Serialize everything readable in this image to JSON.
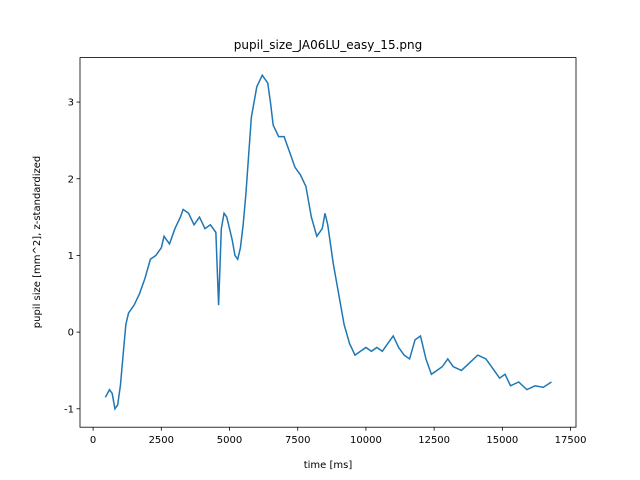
{
  "chart_data": {
    "type": "line",
    "title": "pupil_size_JA06LU_easy_15.png",
    "x_label": "time [ms]",
    "y_label": "pupil size [mm^2], z-standardized",
    "x": [
      450,
      600,
      700,
      800,
      900,
      1000,
      1100,
      1200,
      1300,
      1500,
      1700,
      1900,
      2100,
      2300,
      2500,
      2600,
      2800,
      3000,
      3200,
      3300,
      3500,
      3700,
      3900,
      4100,
      4300,
      4500,
      4600,
      4700,
      4800,
      4900,
      5100,
      5200,
      5300,
      5400,
      5500,
      5600,
      5700,
      5800,
      6000,
      6200,
      6400,
      6500,
      6600,
      6800,
      7000,
      7200,
      7400,
      7600,
      7800,
      8000,
      8200,
      8400,
      8500,
      8600,
      8800,
      9000,
      9200,
      9400,
      9600,
      9800,
      10000,
      10200,
      10400,
      10600,
      10800,
      11000,
      11200,
      11400,
      11600,
      11800,
      12000,
      12200,
      12400,
      12600,
      12800,
      13000,
      13200,
      13500,
      13800,
      14100,
      14400,
      14700,
      14900,
      15100,
      15300,
      15600,
      15900,
      16200,
      16500,
      16800
    ],
    "series": [
      {
        "color": "#1f77b4",
        "values": [
          -0.85,
          -0.75,
          -0.8,
          -1.0,
          -0.95,
          -0.7,
          -0.3,
          0.1,
          0.25,
          0.35,
          0.5,
          0.7,
          0.95,
          1.0,
          1.1,
          1.25,
          1.15,
          1.35,
          1.5,
          1.6,
          1.55,
          1.4,
          1.5,
          1.35,
          1.4,
          1.3,
          0.35,
          1.35,
          1.55,
          1.5,
          1.2,
          1.0,
          0.95,
          1.1,
          1.4,
          1.8,
          2.3,
          2.8,
          3.2,
          3.35,
          3.25,
          3.0,
          2.7,
          2.55,
          2.55,
          2.35,
          2.15,
          2.05,
          1.9,
          1.5,
          1.25,
          1.35,
          1.55,
          1.4,
          0.9,
          0.5,
          0.1,
          -0.15,
          -0.3,
          -0.25,
          -0.2,
          -0.25,
          -0.2,
          -0.25,
          -0.15,
          -0.05,
          -0.2,
          -0.3,
          -0.35,
          -0.1,
          -0.05,
          -0.35,
          -0.55,
          -0.5,
          -0.45,
          -0.35,
          -0.45,
          -0.5,
          -0.4,
          -0.3,
          -0.35,
          -0.5,
          -0.6,
          -0.55,
          -0.7,
          -0.65,
          -0.75,
          -0.7,
          -0.72,
          -0.65
        ]
      }
    ],
    "xlim": [
      -480,
      17700
    ],
    "ylim": [
      -1.24,
      3.58
    ],
    "xticks": [
      0,
      2500,
      5000,
      7500,
      10000,
      12500,
      15000,
      17500
    ],
    "yticks": [
      -1,
      0,
      1,
      2,
      3
    ]
  }
}
